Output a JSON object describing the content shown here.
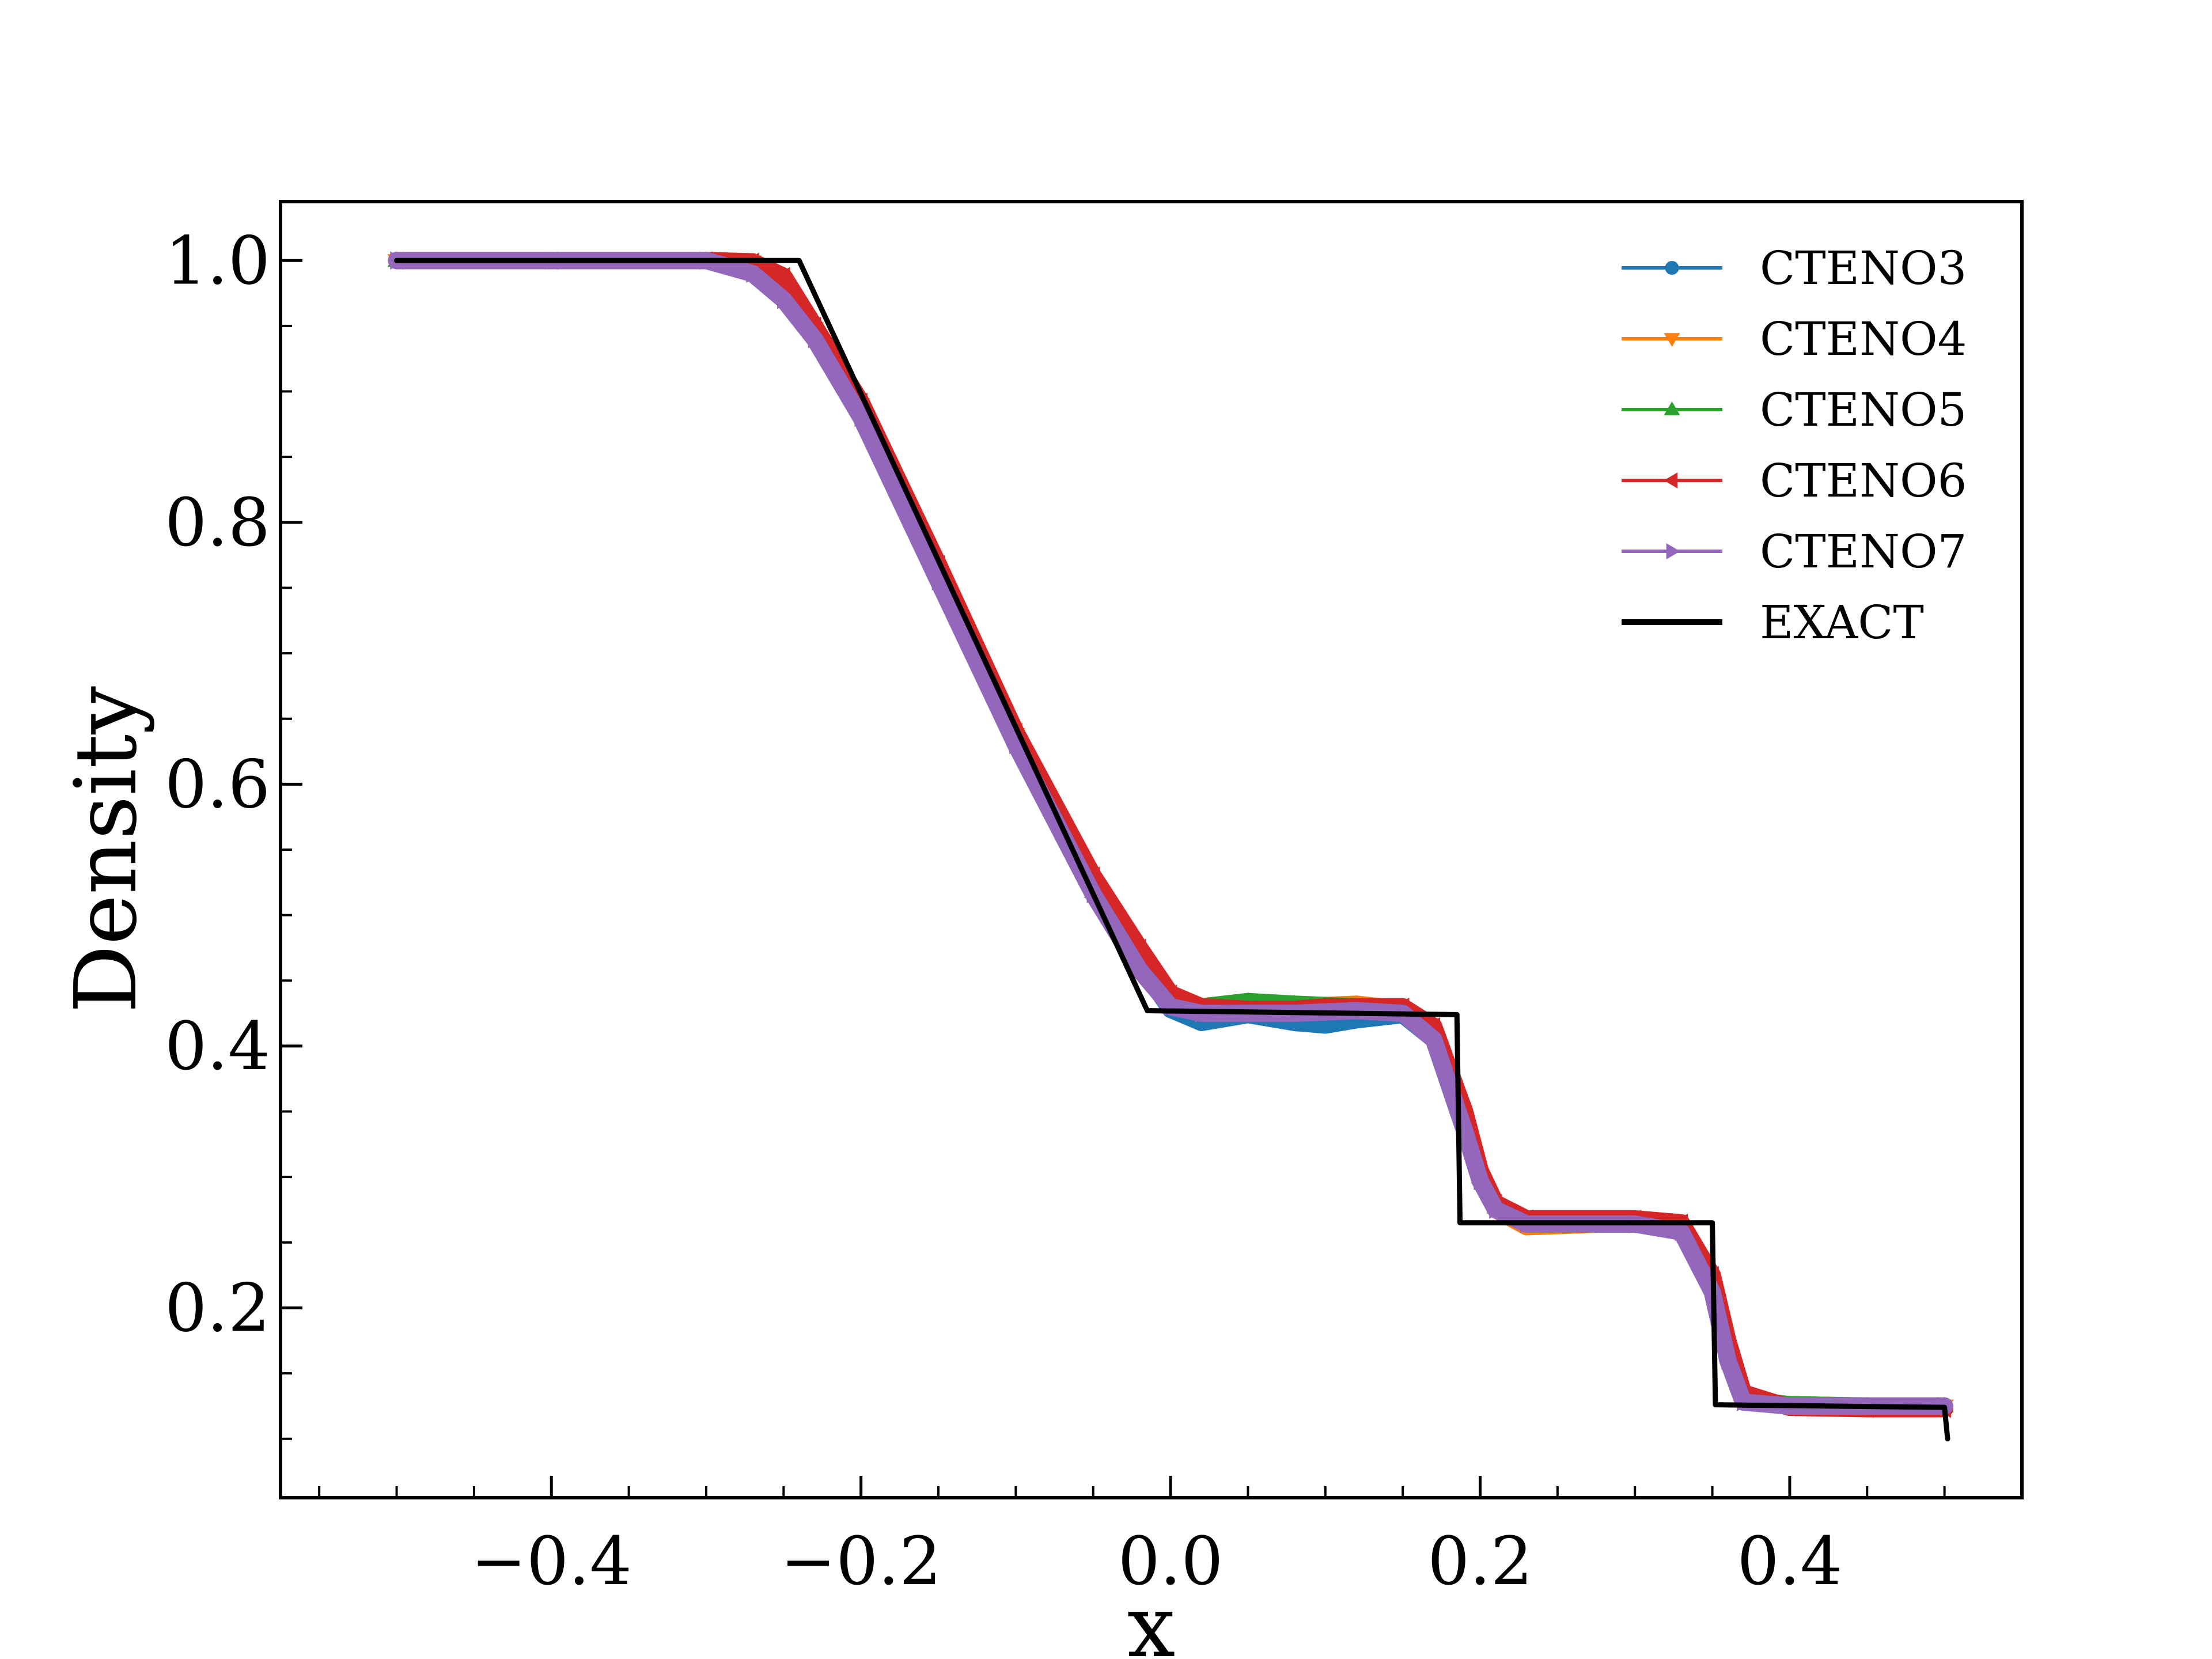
{
  "chart_data": {
    "type": "line",
    "title": "",
    "xlabel": "x",
    "ylabel": "Density",
    "xlim": [
      -0.575,
      0.55
    ],
    "ylim": [
      0.055,
      1.045
    ],
    "xticks": [
      -0.4,
      -0.2,
      0.0,
      0.2,
      0.4
    ],
    "xtick_labels": [
      "−0.4",
      "−0.2",
      "0.0",
      "0.2",
      "0.4"
    ],
    "yticks": [
      0.2,
      0.4,
      0.6,
      0.8,
      1.0
    ],
    "ytick_labels": [
      "0.2",
      "0.4",
      "0.6",
      "0.8",
      "1.0"
    ],
    "grid": false,
    "legend_position": "top-right",
    "series": [
      {
        "name": "CTENO3",
        "color": "#1f77b4",
        "marker": "circle",
        "x": [
          -0.5,
          -0.4,
          -0.3,
          -0.27,
          -0.25,
          -0.23,
          -0.2,
          -0.15,
          -0.1,
          -0.05,
          -0.02,
          0.0,
          0.02,
          0.05,
          0.08,
          0.1,
          0.12,
          0.15,
          0.17,
          0.19,
          0.2,
          0.21,
          0.23,
          0.3,
          0.33,
          0.35,
          0.36,
          0.37,
          0.4,
          0.45,
          0.5
        ],
        "y": [
          1.0,
          1.0,
          1.0,
          0.995,
          0.975,
          0.945,
          0.885,
          0.76,
          0.635,
          0.52,
          0.462,
          0.428,
          0.418,
          0.424,
          0.418,
          0.416,
          0.42,
          0.424,
          0.405,
          0.34,
          0.3,
          0.28,
          0.268,
          0.265,
          0.26,
          0.215,
          0.16,
          0.13,
          0.126,
          0.125,
          0.125
        ]
      },
      {
        "name": "CTENO4",
        "color": "#ff7f0e",
        "marker": "triangle-down",
        "x": [
          -0.5,
          -0.4,
          -0.3,
          -0.27,
          -0.25,
          -0.23,
          -0.2,
          -0.15,
          -0.1,
          -0.05,
          -0.02,
          0.0,
          0.02,
          0.05,
          0.08,
          0.1,
          0.12,
          0.15,
          0.17,
          0.19,
          0.2,
          0.21,
          0.23,
          0.3,
          0.33,
          0.35,
          0.36,
          0.37,
          0.4,
          0.45,
          0.5
        ],
        "y": [
          1.0,
          1.0,
          1.0,
          0.999,
          0.985,
          0.948,
          0.89,
          0.765,
          0.638,
          0.522,
          0.464,
          0.435,
          0.43,
          0.432,
          0.43,
          0.431,
          0.432,
          0.428,
          0.41,
          0.345,
          0.3,
          0.275,
          0.262,
          0.265,
          0.262,
          0.22,
          0.17,
          0.13,
          0.126,
          0.125,
          0.125
        ]
      },
      {
        "name": "CTENO5",
        "color": "#2ca02c",
        "marker": "triangle-up",
        "x": [
          -0.5,
          -0.4,
          -0.3,
          -0.27,
          -0.25,
          -0.23,
          -0.2,
          -0.15,
          -0.1,
          -0.05,
          -0.02,
          0.0,
          0.02,
          0.05,
          0.08,
          0.1,
          0.12,
          0.15,
          0.17,
          0.19,
          0.2,
          0.21,
          0.23,
          0.3,
          0.33,
          0.35,
          0.36,
          0.37,
          0.4,
          0.45,
          0.5
        ],
        "y": [
          1.0,
          1.0,
          1.0,
          0.998,
          0.98,
          0.946,
          0.887,
          0.762,
          0.636,
          0.518,
          0.46,
          0.432,
          0.43,
          0.434,
          0.432,
          0.431,
          0.43,
          0.428,
          0.41,
          0.343,
          0.3,
          0.277,
          0.266,
          0.266,
          0.262,
          0.218,
          0.165,
          0.13,
          0.126,
          0.125,
          0.125
        ]
      },
      {
        "name": "CTENO6",
        "color": "#d62728",
        "marker": "triangle-left",
        "x": [
          -0.5,
          -0.4,
          -0.3,
          -0.27,
          -0.25,
          -0.23,
          -0.2,
          -0.15,
          -0.1,
          -0.05,
          -0.02,
          0.0,
          0.02,
          0.05,
          0.08,
          0.1,
          0.12,
          0.15,
          0.17,
          0.19,
          0.2,
          0.21,
          0.23,
          0.3,
          0.33,
          0.35,
          0.36,
          0.37,
          0.4,
          0.45,
          0.5
        ],
        "y": [
          1.0,
          1.0,
          1.0,
          0.999,
          0.988,
          0.95,
          0.892,
          0.768,
          0.64,
          0.53,
          0.475,
          0.44,
          0.43,
          0.428,
          0.428,
          0.43,
          0.43,
          0.43,
          0.415,
          0.35,
          0.305,
          0.28,
          0.268,
          0.268,
          0.265,
          0.225,
          0.175,
          0.135,
          0.124,
          0.123,
          0.123
        ]
      },
      {
        "name": "CTENO7",
        "color": "#9467bd",
        "marker": "triangle-right",
        "x": [
          -0.5,
          -0.4,
          -0.3,
          -0.27,
          -0.25,
          -0.23,
          -0.2,
          -0.15,
          -0.1,
          -0.05,
          -0.02,
          0.0,
          0.02,
          0.05,
          0.08,
          0.1,
          0.12,
          0.15,
          0.17,
          0.19,
          0.2,
          0.21,
          0.23,
          0.3,
          0.33,
          0.35,
          0.36,
          0.37,
          0.4,
          0.45,
          0.5
        ],
        "y": [
          1.0,
          1.0,
          1.0,
          0.99,
          0.97,
          0.94,
          0.88,
          0.755,
          0.63,
          0.516,
          0.458,
          0.43,
          0.425,
          0.425,
          0.425,
          0.426,
          0.427,
          0.425,
          0.405,
          0.335,
          0.297,
          0.275,
          0.264,
          0.264,
          0.258,
          0.212,
          0.16,
          0.128,
          0.125,
          0.125,
          0.125
        ]
      },
      {
        "name": "EXACT",
        "color": "#000000",
        "marker": "none",
        "x": [
          -0.5,
          -0.24,
          -0.015,
          0.185,
          0.187,
          0.35,
          0.352,
          0.5,
          0.502
        ],
        "y": [
          1.0,
          1.0,
          0.427,
          0.424,
          0.265,
          0.265,
          0.126,
          0.124,
          0.1
        ]
      }
    ]
  }
}
